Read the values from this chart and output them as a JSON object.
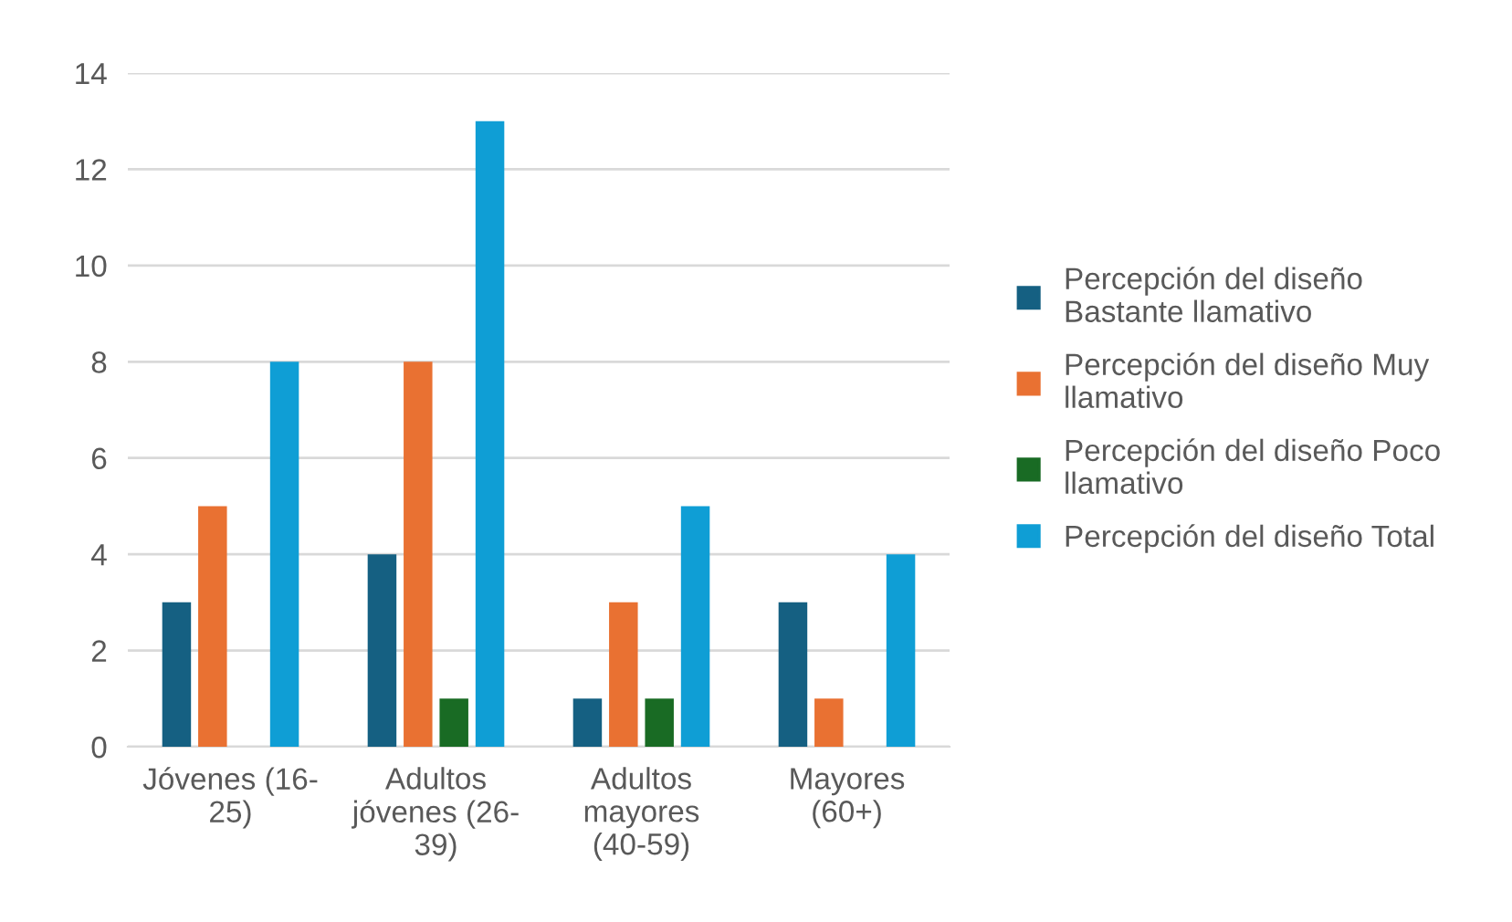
{
  "chart_data": {
    "type": "bar",
    "categories": [
      "Jóvenes (16-\n25)",
      "Adultos\njóvenes (26-\n39)",
      "Adultos\nmayores\n(40-59)",
      "Mayores\n(60+)"
    ],
    "series": [
      {
        "name": "Percepción del diseño\nBastante llamativo",
        "color": "#156082",
        "values": [
          3,
          4,
          1,
          3
        ]
      },
      {
        "name": "Percepción del diseño Muy\nllamativo",
        "color": "#e97132",
        "values": [
          5,
          8,
          3,
          1
        ]
      },
      {
        "name": "Percepción del diseño Poco\nllamativo",
        "color": "#196b24",
        "values": [
          null,
          1,
          1,
          null
        ]
      },
      {
        "name": "Percepción del diseño Total",
        "color": "#0f9ed5",
        "values": [
          8,
          13,
          5,
          4
        ]
      }
    ],
    "ylim": [
      0,
      14
    ],
    "yticks": [
      0,
      2,
      4,
      6,
      8,
      10,
      12,
      14
    ],
    "grid": "y",
    "legend": "right"
  }
}
